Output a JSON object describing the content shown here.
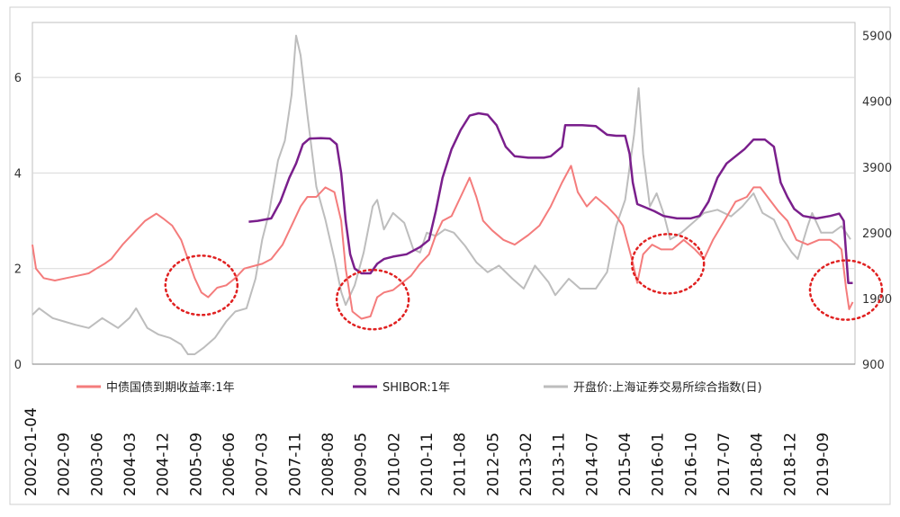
{
  "chart_data": {
    "type": "line",
    "title": "",
    "xlabel": "",
    "x_tick_labels": [
      "2002-01-04",
      "2002-09",
      "2003-06",
      "2004-03",
      "2004-12",
      "2005-09",
      "2006-06",
      "2007-03",
      "2007-11",
      "2008-08",
      "2009-05",
      "2010-02",
      "2010-11",
      "2011-08",
      "2012-05",
      "2013-02",
      "2013-11",
      "2014-07",
      "2015-04",
      "2016-01",
      "2016-10",
      "2017-07",
      "2018-04",
      "2018-12",
      "2019-09"
    ],
    "x_range": [
      "2002-01",
      "2020-03"
    ],
    "y_left": {
      "ticks": [
        "0",
        "2",
        "4",
        "6"
      ],
      "range": [
        0,
        7.15
      ]
    },
    "y_right": {
      "ticks": [
        "900",
        "1900",
        "2900",
        "3900",
        "4900",
        "5900"
      ],
      "range": [
        900,
        6100
      ]
    },
    "legend_position": "bottom-inside",
    "legend": [
      "中债国债到期收益率:1年",
      "SHIBOR:1年",
      "开盘价:上海证券交易所综合指数(日)"
    ],
    "colors": {
      "yield": "#f47c7c",
      "shibor": "#7a1f8c",
      "index": "#bdbdbd",
      "circle": "#e02020",
      "grid": "#d9d9d9"
    },
    "series": [
      {
        "name": "中债国债到期收益率:1年",
        "axis": "left",
        "points": [
          [
            2002.0,
            2.5
          ],
          [
            2002.08,
            2.0
          ],
          [
            2002.25,
            1.8
          ],
          [
            2002.5,
            1.75
          ],
          [
            2002.75,
            1.8
          ],
          [
            2003.0,
            1.85
          ],
          [
            2003.25,
            1.9
          ],
          [
            2003.42,
            2.0
          ],
          [
            2003.6,
            2.1
          ],
          [
            2003.75,
            2.2
          ],
          [
            2004.0,
            2.5
          ],
          [
            2004.25,
            2.75
          ],
          [
            2004.5,
            3.0
          ],
          [
            2004.75,
            3.15
          ],
          [
            2004.9,
            3.05
          ],
          [
            2005.1,
            2.9
          ],
          [
            2005.3,
            2.6
          ],
          [
            2005.45,
            2.2
          ],
          [
            2005.6,
            1.8
          ],
          [
            2005.75,
            1.5
          ],
          [
            2005.9,
            1.4
          ],
          [
            2006.1,
            1.6
          ],
          [
            2006.3,
            1.65
          ],
          [
            2006.5,
            1.8
          ],
          [
            2006.7,
            2.0
          ],
          [
            2006.9,
            2.05
          ],
          [
            2007.1,
            2.1
          ],
          [
            2007.3,
            2.2
          ],
          [
            2007.55,
            2.5
          ],
          [
            2007.75,
            2.9
          ],
          [
            2007.95,
            3.3
          ],
          [
            2008.1,
            3.5
          ],
          [
            2008.3,
            3.5
          ],
          [
            2008.5,
            3.7
          ],
          [
            2008.7,
            3.6
          ],
          [
            2008.85,
            3.0
          ],
          [
            2008.95,
            2.0
          ],
          [
            2009.1,
            1.1
          ],
          [
            2009.3,
            0.95
          ],
          [
            2009.5,
            1.0
          ],
          [
            2009.65,
            1.4
          ],
          [
            2009.8,
            1.5
          ],
          [
            2010.0,
            1.55
          ],
          [
            2010.2,
            1.7
          ],
          [
            2010.4,
            1.85
          ],
          [
            2010.6,
            2.1
          ],
          [
            2010.8,
            2.3
          ],
          [
            2010.95,
            2.7
          ],
          [
            2011.1,
            3.0
          ],
          [
            2011.3,
            3.1
          ],
          [
            2011.5,
            3.5
          ],
          [
            2011.7,
            3.9
          ],
          [
            2011.85,
            3.5
          ],
          [
            2012.0,
            3.0
          ],
          [
            2012.2,
            2.8
          ],
          [
            2012.45,
            2.6
          ],
          [
            2012.7,
            2.5
          ],
          [
            2013.0,
            2.7
          ],
          [
            2013.25,
            2.9
          ],
          [
            2013.5,
            3.3
          ],
          [
            2013.75,
            3.8
          ],
          [
            2013.95,
            4.15
          ],
          [
            2014.1,
            3.6
          ],
          [
            2014.3,
            3.3
          ],
          [
            2014.5,
            3.5
          ],
          [
            2014.75,
            3.3
          ],
          [
            2014.95,
            3.1
          ],
          [
            2015.1,
            2.9
          ],
          [
            2015.3,
            2.2
          ],
          [
            2015.42,
            1.7
          ],
          [
            2015.55,
            2.3
          ],
          [
            2015.75,
            2.5
          ],
          [
            2015.95,
            2.4
          ],
          [
            2016.2,
            2.4
          ],
          [
            2016.45,
            2.6
          ],
          [
            2016.7,
            2.4
          ],
          [
            2016.9,
            2.2
          ],
          [
            2017.1,
            2.6
          ],
          [
            2017.35,
            3.0
          ],
          [
            2017.6,
            3.4
          ],
          [
            2017.85,
            3.5
          ],
          [
            2018.0,
            3.7
          ],
          [
            2018.15,
            3.7
          ],
          [
            2018.35,
            3.45
          ],
          [
            2018.55,
            3.2
          ],
          [
            2018.75,
            3.0
          ],
          [
            2018.95,
            2.6
          ],
          [
            2019.2,
            2.5
          ],
          [
            2019.45,
            2.6
          ],
          [
            2019.7,
            2.6
          ],
          [
            2019.85,
            2.5
          ],
          [
            2019.95,
            2.4
          ],
          [
            2020.05,
            1.6
          ],
          [
            2020.12,
            1.15
          ],
          [
            2020.2,
            1.3
          ]
        ]
      },
      {
        "name": "SHIBOR:1年",
        "axis": "left",
        "points": [
          [
            2006.8,
            2.98
          ],
          [
            2007.0,
            3.0
          ],
          [
            2007.3,
            3.05
          ],
          [
            2007.5,
            3.4
          ],
          [
            2007.7,
            3.9
          ],
          [
            2007.85,
            4.2
          ],
          [
            2008.0,
            4.6
          ],
          [
            2008.15,
            4.72
          ],
          [
            2008.4,
            4.73
          ],
          [
            2008.6,
            4.72
          ],
          [
            2008.75,
            4.6
          ],
          [
            2008.85,
            4.0
          ],
          [
            2008.95,
            3.0
          ],
          [
            2009.05,
            2.3
          ],
          [
            2009.15,
            2.0
          ],
          [
            2009.3,
            1.9
          ],
          [
            2009.5,
            1.9
          ],
          [
            2009.65,
            2.1
          ],
          [
            2009.8,
            2.2
          ],
          [
            2010.0,
            2.25
          ],
          [
            2010.3,
            2.3
          ],
          [
            2010.6,
            2.45
          ],
          [
            2010.8,
            2.6
          ],
          [
            2010.95,
            3.2
          ],
          [
            2011.1,
            3.9
          ],
          [
            2011.3,
            4.5
          ],
          [
            2011.5,
            4.9
          ],
          [
            2011.7,
            5.2
          ],
          [
            2011.9,
            5.25
          ],
          [
            2012.1,
            5.22
          ],
          [
            2012.3,
            5.0
          ],
          [
            2012.5,
            4.55
          ],
          [
            2012.7,
            4.35
          ],
          [
            2013.0,
            4.32
          ],
          [
            2013.35,
            4.32
          ],
          [
            2013.5,
            4.35
          ],
          [
            2013.75,
            4.55
          ],
          [
            2013.82,
            5.0
          ],
          [
            2014.2,
            5.0
          ],
          [
            2014.5,
            4.98
          ],
          [
            2014.75,
            4.8
          ],
          [
            2014.95,
            4.78
          ],
          [
            2015.15,
            4.78
          ],
          [
            2015.25,
            4.4
          ],
          [
            2015.32,
            3.8
          ],
          [
            2015.42,
            3.35
          ],
          [
            2015.55,
            3.3
          ],
          [
            2015.8,
            3.2
          ],
          [
            2016.0,
            3.1
          ],
          [
            2016.3,
            3.05
          ],
          [
            2016.6,
            3.05
          ],
          [
            2016.8,
            3.1
          ],
          [
            2017.0,
            3.4
          ],
          [
            2017.2,
            3.9
          ],
          [
            2017.4,
            4.2
          ],
          [
            2017.6,
            4.35
          ],
          [
            2017.8,
            4.5
          ],
          [
            2018.0,
            4.7
          ],
          [
            2018.25,
            4.7
          ],
          [
            2018.45,
            4.55
          ],
          [
            2018.6,
            3.8
          ],
          [
            2018.75,
            3.5
          ],
          [
            2018.9,
            3.25
          ],
          [
            2019.1,
            3.1
          ],
          [
            2019.4,
            3.05
          ],
          [
            2019.7,
            3.1
          ],
          [
            2019.9,
            3.15
          ],
          [
            2020.0,
            3.0
          ],
          [
            2020.1,
            1.7
          ],
          [
            2020.2,
            1.7
          ]
        ]
      },
      {
        "name": "开盘价:上海证券交易所综合指数(日)",
        "axis": "right",
        "points": [
          [
            2002.0,
            1650
          ],
          [
            2002.15,
            1750
          ],
          [
            2002.45,
            1600
          ],
          [
            2002.7,
            1550
          ],
          [
            2002.95,
            1500
          ],
          [
            2003.25,
            1450
          ],
          [
            2003.55,
            1600
          ],
          [
            2003.9,
            1450
          ],
          [
            2004.15,
            1600
          ],
          [
            2004.3,
            1750
          ],
          [
            2004.55,
            1450
          ],
          [
            2004.8,
            1350
          ],
          [
            2005.05,
            1300
          ],
          [
            2005.3,
            1200
          ],
          [
            2005.45,
            1050
          ],
          [
            2005.6,
            1050
          ],
          [
            2005.8,
            1150
          ],
          [
            2006.05,
            1300
          ],
          [
            2006.3,
            1550
          ],
          [
            2006.5,
            1700
          ],
          [
            2006.75,
            1750
          ],
          [
            2006.95,
            2200
          ],
          [
            2007.1,
            2800
          ],
          [
            2007.25,
            3200
          ],
          [
            2007.45,
            4000
          ],
          [
            2007.6,
            4300
          ],
          [
            2007.75,
            5000
          ],
          [
            2007.85,
            5900
          ],
          [
            2007.95,
            5600
          ],
          [
            2008.1,
            4700
          ],
          [
            2008.3,
            3600
          ],
          [
            2008.5,
            3100
          ],
          [
            2008.7,
            2500
          ],
          [
            2008.85,
            2000
          ],
          [
            2008.95,
            1800
          ],
          [
            2009.15,
            2100
          ],
          [
            2009.35,
            2600
          ],
          [
            2009.55,
            3300
          ],
          [
            2009.65,
            3400
          ],
          [
            2009.8,
            2950
          ],
          [
            2010.0,
            3200
          ],
          [
            2010.25,
            3050
          ],
          [
            2010.45,
            2650
          ],
          [
            2010.6,
            2600
          ],
          [
            2010.75,
            2900
          ],
          [
            2010.95,
            2850
          ],
          [
            2011.15,
            2950
          ],
          [
            2011.35,
            2900
          ],
          [
            2011.6,
            2700
          ],
          [
            2011.85,
            2450
          ],
          [
            2012.1,
            2300
          ],
          [
            2012.35,
            2400
          ],
          [
            2012.65,
            2200
          ],
          [
            2012.9,
            2050
          ],
          [
            2013.15,
            2400
          ],
          [
            2013.45,
            2150
          ],
          [
            2013.6,
            1950
          ],
          [
            2013.9,
            2200
          ],
          [
            2014.15,
            2050
          ],
          [
            2014.5,
            2050
          ],
          [
            2014.75,
            2300
          ],
          [
            2014.95,
            3000
          ],
          [
            2015.15,
            3400
          ],
          [
            2015.35,
            4400
          ],
          [
            2015.45,
            5100
          ],
          [
            2015.55,
            4100
          ],
          [
            2015.7,
            3300
          ],
          [
            2015.85,
            3500
          ],
          [
            2016.0,
            3200
          ],
          [
            2016.15,
            2800
          ],
          [
            2016.4,
            2900
          ],
          [
            2016.65,
            3050
          ],
          [
            2016.9,
            3200
          ],
          [
            2017.2,
            3250
          ],
          [
            2017.5,
            3150
          ],
          [
            2017.75,
            3300
          ],
          [
            2018.0,
            3500
          ],
          [
            2018.2,
            3200
          ],
          [
            2018.45,
            3100
          ],
          [
            2018.65,
            2800
          ],
          [
            2018.85,
            2600
          ],
          [
            2018.98,
            2500
          ],
          [
            2019.2,
            3000
          ],
          [
            2019.3,
            3200
          ],
          [
            2019.5,
            2900
          ],
          [
            2019.75,
            2900
          ],
          [
            2019.95,
            3000
          ],
          [
            2020.05,
            2900
          ],
          [
            2020.15,
            2800
          ]
        ]
      }
    ],
    "annotations": [
      {
        "type": "dotted-circle",
        "x": 2005.75,
        "y_left": 1.65
      },
      {
        "type": "dotted-circle",
        "x": 2009.55,
        "y_left": 1.35
      },
      {
        "type": "dotted-circle",
        "x": 2016.1,
        "y_left": 2.1
      },
      {
        "type": "dotted-circle",
        "x": 2020.05,
        "y_left": 1.55
      }
    ]
  }
}
